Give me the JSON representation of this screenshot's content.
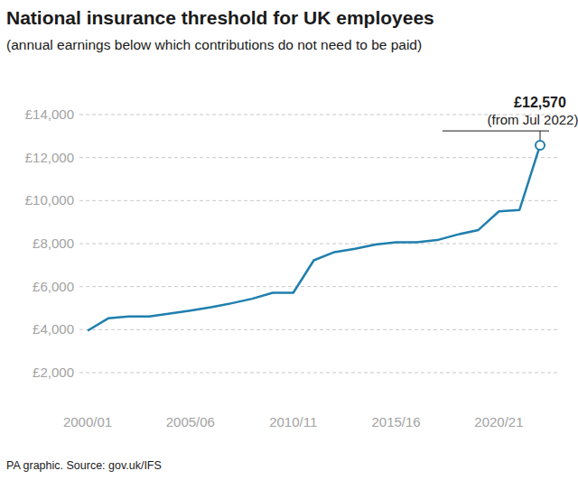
{
  "chart_data": {
    "type": "line",
    "title": "National insurance threshold for UK employees",
    "subtitle": "(annual earnings below which contributions do not need to be paid)",
    "source": "PA graphic. Source: gov.uk/IFS",
    "categories": [
      "2000/01",
      null,
      null,
      null,
      null,
      "2005/06",
      null,
      null,
      null,
      null,
      "2010/11",
      null,
      null,
      null,
      null,
      "2015/16",
      null,
      null,
      null,
      null,
      "2020/21",
      null,
      null
    ],
    "values": [
      3952,
      4524,
      4615,
      4615,
      4745,
      4888,
      5044,
      5225,
      5435,
      5715,
      5715,
      7225,
      7605,
      7755,
      7956,
      8060,
      8060,
      8164,
      8424,
      8632,
      9500,
      9568,
      12570
    ],
    "color": "#1f7fad",
    "ylim": [
      2000,
      14000
    ],
    "yticks": [
      {
        "value": 2000,
        "label": "£2,000"
      },
      {
        "value": 4000,
        "label": "£4,000"
      },
      {
        "value": 6000,
        "label": "£6,000"
      },
      {
        "value": 8000,
        "label": "£8,000"
      },
      {
        "value": 10000,
        "label": "£10,000"
      },
      {
        "value": 12000,
        "label": "£12,000"
      },
      {
        "value": 14000,
        "label": "£14,000"
      }
    ],
    "grid": true,
    "annotations": [
      {
        "label": "£12,570",
        "note": "(from Jul 2022)",
        "index": 22
      }
    ]
  }
}
